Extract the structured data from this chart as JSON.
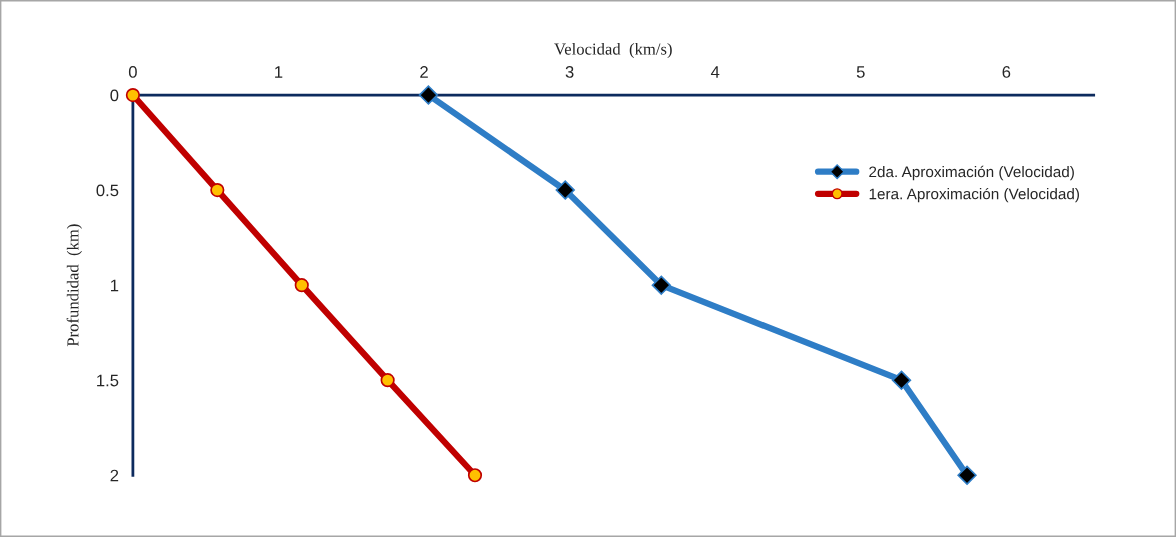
{
  "chart_data": {
    "type": "line",
    "xlabel": "Velocidad  (km/s)",
    "ylabel": "Profundidad  (km)",
    "xlim": [
      0,
      6.6
    ],
    "xticks": [
      0,
      1,
      2,
      3,
      4,
      5,
      6
    ],
    "ylim": [
      2,
      0
    ],
    "yticks": [
      0,
      0.5,
      1,
      1.5,
      2
    ],
    "grid": false,
    "legend": "top right",
    "line_style": "solid",
    "series": [
      {
        "name": "2da. Aproximación (Velocidad)",
        "color": "#2e7dc6",
        "marker": "diamond",
        "x": [
          2.03,
          2.97,
          3.63,
          5.28,
          5.73
        ],
        "values": [
          0,
          0.5,
          1,
          1.5,
          2
        ]
      },
      {
        "name": "1era. Aproximación (Velocidad)",
        "color": "#c00000",
        "marker": "circle",
        "x": [
          0,
          0.58,
          1.16,
          1.75,
          2.35
        ],
        "values": [
          0,
          0.5,
          1,
          1.5,
          2
        ]
      }
    ]
  }
}
